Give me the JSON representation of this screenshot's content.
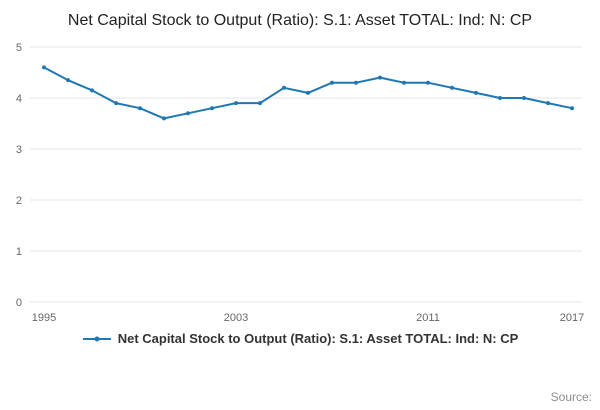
{
  "chart": {
    "title": "Net Capital Stock to Output (Ratio): S.1: Asset TOTAL: Ind: N: CP",
    "legend_label": "Net Capital Stock to Output (Ratio): S.1: Asset TOTAL: Ind: N: CP",
    "source_label": "Source:",
    "line_color": "#1f77b4",
    "grid_color": "#e6e6e6",
    "axis_label_color": "#666666"
  },
  "chart_data": {
    "type": "line",
    "title": "Net Capital Stock to Output (Ratio): S.1: Asset TOTAL: Ind: N: CP",
    "x": [
      1995,
      1996,
      1997,
      1998,
      1999,
      2000,
      2001,
      2002,
      2003,
      2004,
      2005,
      2006,
      2007,
      2008,
      2009,
      2010,
      2011,
      2012,
      2013,
      2014,
      2015,
      2016,
      2017
    ],
    "values": [
      4.6,
      4.35,
      4.15,
      3.9,
      3.8,
      3.6,
      3.7,
      3.8,
      3.9,
      3.9,
      4.2,
      4.1,
      4.3,
      4.3,
      4.4,
      4.3,
      4.3,
      4.2,
      4.1,
      4.0,
      4.0,
      3.9,
      3.8
    ],
    "xlabel": "",
    "ylabel": "",
    "ylim": [
      0,
      5
    ],
    "yticks": [
      0,
      1,
      2,
      3,
      4,
      5
    ],
    "xticks": [
      1995,
      2003,
      2011,
      2017
    ],
    "grid": true,
    "legend_position": "bottom"
  }
}
